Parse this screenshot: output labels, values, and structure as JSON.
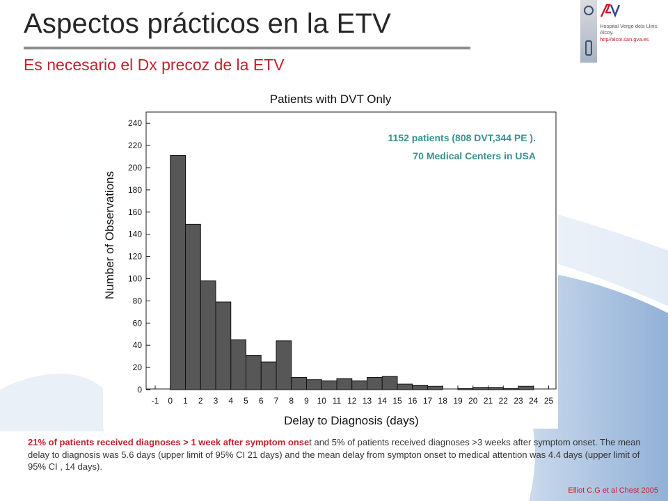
{
  "slide": {
    "title": "Aspectos prácticos en la ETV",
    "subtitle": "Es necesario el Dx precoz de la ETV"
  },
  "logo": {
    "badge_text": "AV",
    "hospital_line1": "Hospital Verge dels Lliris.",
    "hospital_line2": "Alcoy.",
    "url": "http//alcoi.san.gva.es"
  },
  "colors": {
    "title": "#262626",
    "accent_red": "#c4212e",
    "annotation_teal": "#3a8f8f",
    "bar_fill": "#575757",
    "bar_stroke": "#111111"
  },
  "chart_data": {
    "type": "bar",
    "title": "Patients with DVT Only",
    "xlabel": "Delay to Diagnosis (days)",
    "ylabel": "Number of Observations",
    "x_ticks": [
      "-1",
      "0",
      "1",
      "2",
      "3",
      "4",
      "5",
      "6",
      "7",
      "8",
      "9",
      "10",
      "11",
      "12",
      "13",
      "14",
      "15",
      "16",
      "17",
      "18",
      "19",
      "20",
      "21",
      "22",
      "23",
      "24",
      "25"
    ],
    "y_ticks": [
      0,
      20,
      40,
      60,
      80,
      100,
      120,
      140,
      160,
      180,
      200,
      220,
      240
    ],
    "ylim": [
      0,
      250
    ],
    "xlim": [
      -1,
      25
    ],
    "grid": false,
    "categories": [
      "0",
      "1",
      "2",
      "3",
      "4",
      "5",
      "6",
      "7",
      "8",
      "9",
      "10",
      "11",
      "12",
      "13",
      "14",
      "15",
      "16",
      "17",
      "18",
      "19",
      "20",
      "21",
      "22",
      "23"
    ],
    "values": [
      211,
      149,
      98,
      79,
      45,
      31,
      25,
      44,
      11,
      9,
      8,
      10,
      8,
      11,
      12,
      5,
      4,
      3,
      0,
      1,
      2,
      2,
      1,
      3
    ],
    "annotation": {
      "line1": "1152 patients (808 DVT,344 PE ).",
      "line2": "70 Medical Centers in USA"
    }
  },
  "text": {
    "highlight": "21% of patients  received diagnoses > 1 week after  symptom onse",
    "rest": "t  and 5% of patients received diagnoses >3 weeks after symptom  onset. The mean  delay to diagnosis was 5.6 days  (upper limit of 95% CI  21 days) and the mean  delay from  sympton onset  to medical  attention was 4.4 days (upper limit of 95% CI , 14 days).",
    "citation": "Elliot C.G et al Chest 2005"
  }
}
